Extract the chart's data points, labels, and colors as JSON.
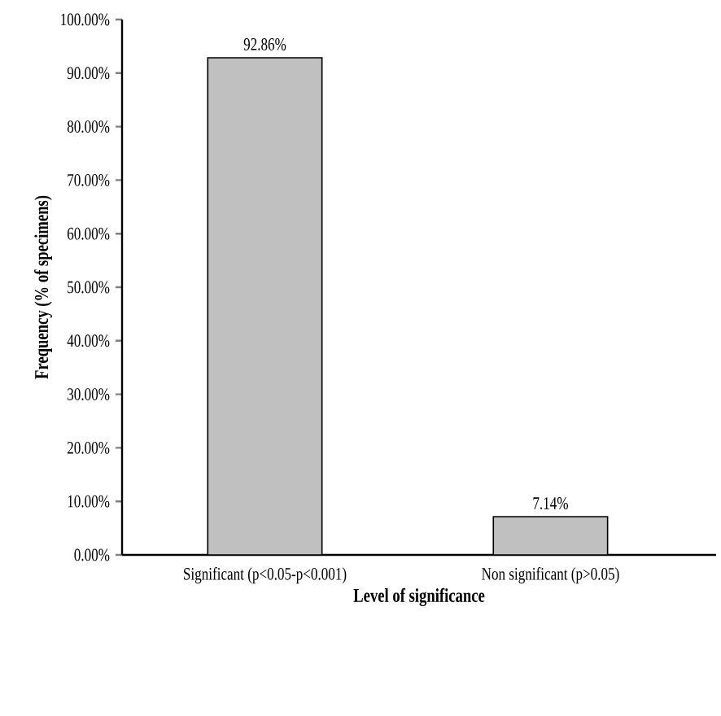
{
  "chart_data": {
    "type": "bar",
    "xlabel": "Level of significance",
    "ylabel": "Frequency (% of specimens)",
    "categories": [
      "Significant (p<0.05-p<0.001)",
      "Non significant (p>0.05)"
    ],
    "values": [
      92.86,
      7.14
    ],
    "value_labels": [
      "92.86%",
      "7.14%"
    ],
    "color": "#c0c0c0",
    "ylim": [
      0,
      100
    ],
    "yticks": [
      {
        "value": 0,
        "label": "0.00%"
      },
      {
        "value": 10,
        "label": "10.00%"
      },
      {
        "value": 20,
        "label": "20.00%"
      },
      {
        "value": 30,
        "label": "30.00%"
      },
      {
        "value": 40,
        "label": "40.00%"
      },
      {
        "value": 50,
        "label": "50.00%"
      },
      {
        "value": 60,
        "label": "60.00%"
      },
      {
        "value": 70,
        "label": "70.00%"
      },
      {
        "value": 80,
        "label": "80.00%"
      },
      {
        "value": 90,
        "label": "90.00%"
      },
      {
        "value": 100,
        "label": "100.00%"
      }
    ],
    "grid": false
  }
}
